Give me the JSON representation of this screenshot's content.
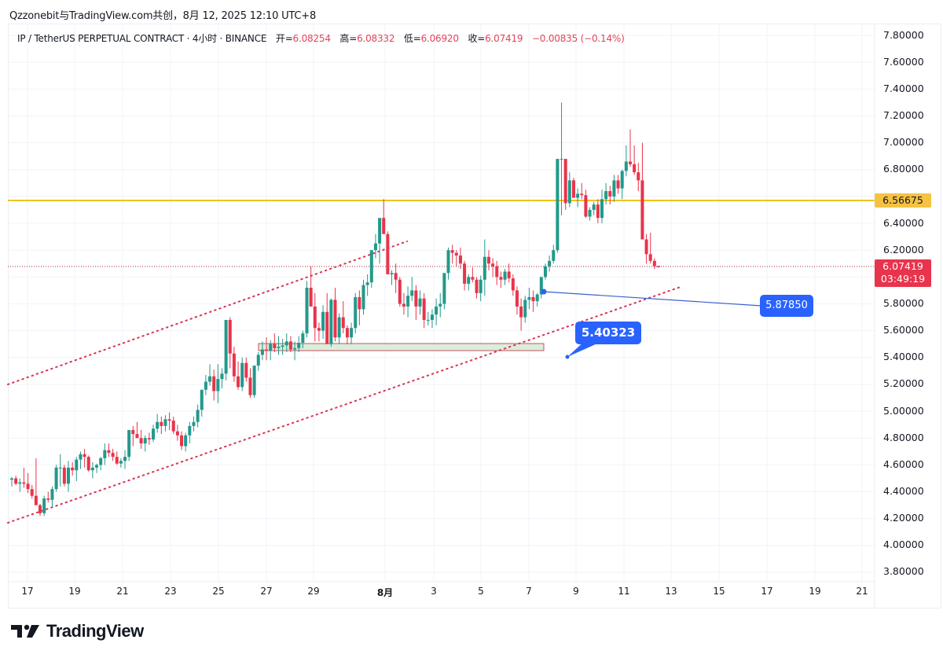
{
  "credit": "Qzzonebit与TradingView.com共创，8月 12, 2025 12:10 UTC+8",
  "legend": {
    "symbol": "IP / TetherUS PERPETUAL CONTRACT · 4小时 · BINANCE",
    "open_label": "开=",
    "open": "6.08254",
    "high_label": "高=",
    "high": "6.08332",
    "low_label": "低=",
    "low": "6.06920",
    "close_label": "收=",
    "close": "6.07419",
    "change": "−0.00835 (−0.14%)"
  },
  "price_axis": [
    "7.80000",
    "7.60000",
    "7.40000",
    "7.20000",
    "7.00000",
    "6.80000",
    "6.40000",
    "6.20000",
    "5.80000",
    "5.60000",
    "5.40000",
    "5.20000",
    "5.00000",
    "4.80000",
    "4.60000",
    "4.40000",
    "4.20000",
    "4.00000",
    "3.80000"
  ],
  "badges": {
    "resistance": "6.56675",
    "last_price": "6.07419",
    "countdown": "03:49:19"
  },
  "callouts": {
    "line_label": "5.87850",
    "note_label": "5.40323"
  },
  "time_axis": [
    "17",
    "19",
    "21",
    "23",
    "25",
    "27",
    "29",
    "8月",
    "3",
    "5",
    "7",
    "9",
    "11",
    "13",
    "15",
    "17",
    "19",
    "21"
  ],
  "brand": "TradingView",
  "colors": {
    "up": "#22998a",
    "down": "#e8344c",
    "resistance": "#f0c21c",
    "channel": "#d9344f",
    "callout": "#2962ff",
    "zone_fill": "#d9eedb",
    "zone_border": "#c9535f"
  },
  "chart_data": {
    "type": "candlestick",
    "title": "IP / TetherUS PERPETUAL CONTRACT · 4小时 · BINANCE",
    "xlabel": "",
    "ylabel": "",
    "ylim": [
      3.7,
      7.9
    ],
    "y_ticks": [
      3.8,
      4.0,
      4.2,
      4.4,
      4.6,
      4.8,
      5.0,
      5.2,
      5.4,
      5.6,
      5.8,
      6.0,
      6.2,
      6.4,
      6.6,
      6.8,
      7.0,
      7.2,
      7.4,
      7.6,
      7.8
    ],
    "x_tick_labels": [
      "17",
      "19",
      "21",
      "23",
      "25",
      "27",
      "29",
      "8月",
      "3",
      "5",
      "7",
      "9",
      "11",
      "13",
      "15",
      "17",
      "19",
      "21"
    ],
    "grid": true,
    "annotations": {
      "resistance_line": 6.56675,
      "last_price": 6.07419,
      "horizontal_ray_label": 5.8785,
      "callout_label": 5.40323,
      "support_zone": [
        5.46,
        5.51
      ],
      "channel": "ascending parallel channel (dotted red)"
    },
    "ohlc": [
      [
        4.49,
        4.51,
        4.44,
        4.5
      ],
      [
        4.5,
        4.52,
        4.45,
        4.46
      ],
      [
        4.46,
        4.5,
        4.4,
        4.47
      ],
      [
        4.47,
        4.58,
        4.43,
        4.46
      ],
      [
        4.46,
        4.54,
        4.39,
        4.42
      ],
      [
        4.42,
        4.45,
        4.35,
        4.37
      ],
      [
        4.37,
        4.65,
        4.3,
        4.3
      ],
      [
        4.3,
        4.31,
        4.22,
        4.24
      ],
      [
        4.24,
        4.37,
        4.22,
        4.35
      ],
      [
        4.35,
        4.4,
        4.32,
        4.34
      ],
      [
        4.34,
        4.44,
        4.28,
        4.42
      ],
      [
        4.42,
        4.6,
        4.4,
        4.58
      ],
      [
        4.58,
        4.68,
        4.44,
        4.58
      ],
      [
        4.58,
        4.6,
        4.44,
        4.46
      ],
      [
        4.46,
        4.63,
        4.4,
        4.58
      ],
      [
        4.58,
        4.62,
        4.52,
        4.56
      ],
      [
        4.56,
        4.66,
        4.48,
        4.64
      ],
      [
        4.64,
        4.7,
        4.57,
        4.68
      ],
      [
        4.68,
        4.72,
        4.58,
        4.66
      ],
      [
        4.66,
        4.67,
        4.55,
        4.56
      ],
      [
        4.56,
        4.62,
        4.5,
        4.58
      ],
      [
        4.58,
        4.61,
        4.54,
        4.6
      ],
      [
        4.6,
        4.66,
        4.56,
        4.65
      ],
      [
        4.65,
        4.76,
        4.6,
        4.71
      ],
      [
        4.71,
        4.76,
        4.66,
        4.69
      ],
      [
        4.69,
        4.72,
        4.63,
        4.66
      ],
      [
        4.66,
        4.7,
        4.6,
        4.61
      ],
      [
        4.61,
        4.65,
        4.58,
        4.63
      ],
      [
        4.63,
        4.71,
        4.57,
        4.66
      ],
      [
        4.66,
        4.8,
        4.63,
        4.86
      ],
      [
        4.86,
        4.89,
        4.74,
        4.83
      ],
      [
        4.83,
        4.92,
        4.8,
        4.8
      ],
      [
        4.8,
        4.86,
        4.72,
        4.76
      ],
      [
        4.76,
        4.82,
        4.7,
        4.8
      ],
      [
        4.8,
        4.84,
        4.75,
        4.79
      ],
      [
        4.79,
        4.9,
        4.77,
        4.87
      ],
      [
        4.87,
        4.98,
        4.84,
        4.92
      ],
      [
        4.92,
        4.96,
        4.83,
        4.89
      ],
      [
        4.89,
        4.97,
        4.85,
        4.94
      ],
      [
        4.94,
        4.99,
        4.86,
        4.93
      ],
      [
        4.93,
        4.96,
        4.83,
        4.85
      ],
      [
        4.85,
        4.9,
        4.78,
        4.82
      ],
      [
        4.82,
        4.85,
        4.71,
        4.74
      ],
      [
        4.74,
        4.84,
        4.7,
        4.82
      ],
      [
        4.82,
        4.92,
        4.76,
        4.89
      ],
      [
        4.89,
        4.96,
        4.85,
        4.92
      ],
      [
        4.92,
        5.05,
        4.88,
        5.01
      ],
      [
        5.01,
        5.16,
        4.96,
        5.16
      ],
      [
        5.16,
        5.27,
        5.12,
        5.22
      ],
      [
        5.22,
        5.35,
        5.19,
        5.26
      ],
      [
        5.26,
        5.31,
        5.08,
        5.15
      ],
      [
        5.15,
        5.35,
        5.06,
        5.24
      ],
      [
        5.24,
        5.32,
        5.17,
        5.28
      ],
      [
        5.28,
        5.65,
        5.23,
        5.68
      ],
      [
        5.68,
        5.7,
        5.32,
        5.43
      ],
      [
        5.43,
        5.48,
        5.22,
        5.26
      ],
      [
        5.26,
        5.37,
        5.16,
        5.18
      ],
      [
        5.18,
        5.4,
        5.15,
        5.36
      ],
      [
        5.36,
        5.4,
        5.22,
        5.25
      ],
      [
        5.25,
        5.32,
        5.1,
        5.12
      ],
      [
        5.12,
        5.34,
        5.1,
        5.34
      ],
      [
        5.34,
        5.44,
        5.3,
        5.42
      ],
      [
        5.42,
        5.52,
        5.38,
        5.46
      ],
      [
        5.46,
        5.55,
        5.38,
        5.45
      ],
      [
        5.45,
        5.53,
        5.38,
        5.5
      ],
      [
        5.5,
        5.58,
        5.44,
        5.47
      ],
      [
        5.47,
        5.56,
        5.42,
        5.48
      ],
      [
        5.48,
        5.54,
        5.42,
        5.49
      ],
      [
        5.49,
        5.58,
        5.44,
        5.52
      ],
      [
        5.52,
        5.56,
        5.44,
        5.46
      ],
      [
        5.46,
        5.52,
        5.38,
        5.47
      ],
      [
        5.47,
        5.56,
        5.44,
        5.51
      ],
      [
        5.51,
        5.6,
        5.47,
        5.58
      ],
      [
        5.58,
        5.97,
        5.55,
        5.92
      ],
      [
        5.92,
        6.08,
        5.82,
        5.78
      ],
      [
        5.78,
        5.88,
        5.52,
        5.62
      ],
      [
        5.62,
        5.66,
        5.52,
        5.6
      ],
      [
        5.6,
        5.79,
        5.54,
        5.74
      ],
      [
        5.74,
        5.88,
        5.5,
        5.5
      ],
      [
        5.5,
        5.84,
        5.48,
        5.83
      ],
      [
        5.83,
        5.92,
        5.52,
        5.55
      ],
      [
        5.55,
        5.73,
        5.5,
        5.7
      ],
      [
        5.7,
        5.82,
        5.58,
        5.62
      ],
      [
        5.62,
        5.64,
        5.5,
        5.55
      ],
      [
        5.55,
        5.66,
        5.5,
        5.62
      ],
      [
        5.62,
        5.88,
        5.58,
        5.85
      ],
      [
        5.85,
        5.9,
        5.64,
        5.76
      ],
      [
        5.76,
        5.98,
        5.72,
        5.94
      ],
      [
        5.94,
        6.02,
        5.86,
        5.96
      ],
      [
        5.96,
        6.2,
        5.92,
        6.2
      ],
      [
        6.2,
        6.32,
        6.14,
        6.25
      ],
      [
        6.25,
        6.43,
        6.1,
        6.44
      ],
      [
        6.44,
        6.58,
        6.33,
        6.32
      ],
      [
        6.32,
        6.34,
        6.02,
        6.02
      ],
      [
        6.02,
        6.05,
        5.94,
        6.03
      ],
      [
        6.03,
        6.1,
        5.88,
        5.98
      ],
      [
        5.98,
        6.0,
        5.78,
        5.8
      ],
      [
        5.8,
        5.88,
        5.72,
        5.78
      ],
      [
        5.78,
        5.93,
        5.7,
        5.86
      ],
      [
        5.86,
        6.0,
        5.82,
        5.9
      ],
      [
        5.9,
        5.94,
        5.68,
        5.78
      ],
      [
        5.78,
        5.9,
        5.72,
        5.84
      ],
      [
        5.84,
        5.88,
        5.62,
        5.68
      ],
      [
        5.68,
        5.74,
        5.64,
        5.68
      ],
      [
        5.68,
        5.76,
        5.62,
        5.72
      ],
      [
        5.72,
        5.84,
        5.64,
        5.78
      ],
      [
        5.78,
        5.88,
        5.7,
        5.8
      ],
      [
        5.8,
        6.02,
        5.76,
        6.03
      ],
      [
        6.03,
        6.22,
        5.98,
        6.2
      ],
      [
        6.2,
        6.24,
        6.1,
        6.18
      ],
      [
        6.18,
        6.2,
        6.08,
        6.16
      ],
      [
        6.16,
        6.22,
        6.06,
        6.1
      ],
      [
        6.1,
        6.12,
        5.9,
        5.95
      ],
      [
        5.95,
        6.02,
        5.9,
        6.0
      ],
      [
        6.0,
        6.07,
        5.96,
        5.98
      ],
      [
        5.98,
        6.0,
        5.84,
        5.88
      ],
      [
        5.88,
        6.01,
        5.82,
        5.98
      ],
      [
        5.98,
        6.28,
        5.86,
        6.15
      ],
      [
        6.15,
        6.2,
        6.05,
        6.1
      ],
      [
        6.1,
        6.14,
        6.0,
        6.08
      ],
      [
        6.08,
        6.12,
        5.94,
        6.0
      ],
      [
        6.0,
        6.04,
        5.92,
        5.98
      ],
      [
        5.98,
        6.06,
        5.94,
        6.04
      ],
      [
        6.04,
        6.1,
        5.96,
        5.99
      ],
      [
        5.99,
        6.02,
        5.86,
        5.9
      ],
      [
        5.9,
        5.93,
        5.72,
        5.78
      ],
      [
        5.78,
        5.84,
        5.6,
        5.7
      ],
      [
        5.7,
        5.86,
        5.66,
        5.83
      ],
      [
        5.83,
        5.92,
        5.76,
        5.85
      ],
      [
        5.85,
        5.9,
        5.74,
        5.82
      ],
      [
        5.82,
        5.88,
        5.78,
        5.87
      ],
      [
        5.87,
        6.0,
        5.84,
        6.0
      ],
      [
        6.0,
        6.1,
        5.98,
        6.08
      ],
      [
        6.08,
        6.16,
        6.04,
        6.12
      ],
      [
        6.12,
        6.24,
        6.1,
        6.2
      ],
      [
        6.2,
        6.46,
        6.18,
        6.88
      ],
      [
        6.88,
        7.3,
        6.46,
        6.88
      ],
      [
        6.88,
        6.75,
        6.5,
        6.55
      ],
      [
        6.55,
        6.78,
        6.52,
        6.72
      ],
      [
        6.72,
        6.74,
        6.6,
        6.59
      ],
      [
        6.59,
        6.66,
        6.52,
        6.62
      ],
      [
        6.62,
        6.7,
        6.58,
        6.61
      ],
      [
        6.61,
        6.65,
        6.44,
        6.45
      ],
      [
        6.45,
        6.52,
        6.42,
        6.5
      ],
      [
        6.5,
        6.56,
        6.46,
        6.54
      ],
      [
        6.54,
        6.58,
        6.4,
        6.44
      ],
      [
        6.44,
        6.65,
        6.4,
        6.58
      ],
      [
        6.58,
        6.7,
        6.54,
        6.64
      ],
      [
        6.64,
        6.68,
        6.54,
        6.6
      ],
      [
        6.6,
        6.76,
        6.56,
        6.72
      ],
      [
        6.72,
        6.76,
        6.62,
        6.66
      ],
      [
        6.66,
        6.8,
        6.58,
        6.79
      ],
      [
        6.79,
        6.98,
        6.75,
        6.86
      ],
      [
        6.86,
        7.1,
        6.82,
        6.84
      ],
      [
        6.84,
        6.98,
        6.76,
        6.78
      ],
      [
        6.78,
        6.85,
        6.64,
        6.72
      ],
      [
        6.72,
        7.0,
        6.48,
        6.28
      ],
      [
        6.28,
        6.32,
        6.1,
        6.17
      ],
      [
        6.17,
        6.33,
        6.1,
        6.12
      ],
      [
        6.12,
        6.14,
        6.06,
        6.08
      ],
      [
        6.08254,
        6.08332,
        6.0692,
        6.07419
      ]
    ]
  }
}
